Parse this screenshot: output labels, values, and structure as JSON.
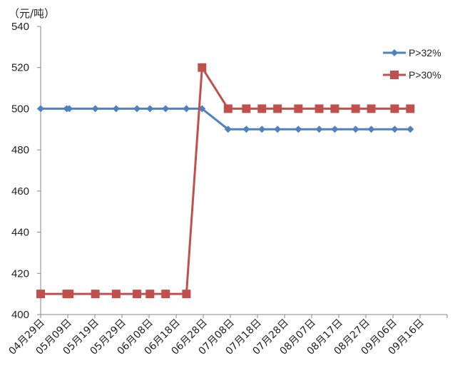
{
  "chart_data": {
    "type": "line",
    "y_unit_label": "（元/吨）",
    "ylim": [
      400,
      540
    ],
    "y_ticks": [
      400,
      420,
      440,
      460,
      480,
      500,
      520,
      540
    ],
    "x_tick_labels": [
      "04月29日",
      "05月09日",
      "05月19日",
      "05月29日",
      "06月08日",
      "06月18日",
      "06月28日",
      "07月08日",
      "07月18日",
      "07月28日",
      "08月07日",
      "08月17日",
      "08月27日",
      "09月06日",
      "09月16日"
    ],
    "x": [
      "04-29",
      "05-09",
      "05-10",
      "05-20",
      "05-28",
      "06-05",
      "06-10",
      "06-16",
      "06-24",
      "06-30",
      "07-10",
      "07-17",
      "07-23",
      "07-29",
      "08-06",
      "08-14",
      "08-20",
      "08-28",
      "09-03",
      "09-12",
      "09-18"
    ],
    "series": [
      {
        "name": "P>32%",
        "color": "#4f81bd",
        "marker": "diamond",
        "values": [
          500,
          500,
          500,
          500,
          500,
          500,
          500,
          500,
          500,
          500,
          490,
          490,
          490,
          490,
          490,
          490,
          490,
          490,
          490,
          490,
          490
        ]
      },
      {
        "name": "P>30%",
        "color": "#c0504d",
        "marker": "square",
        "values": [
          410,
          410,
          410,
          410,
          410,
          410,
          410,
          410,
          410,
          520,
          500,
          500,
          500,
          500,
          500,
          500,
          500,
          500,
          500,
          500,
          500
        ]
      }
    ],
    "grid": false,
    "legend_position": "top-right"
  }
}
